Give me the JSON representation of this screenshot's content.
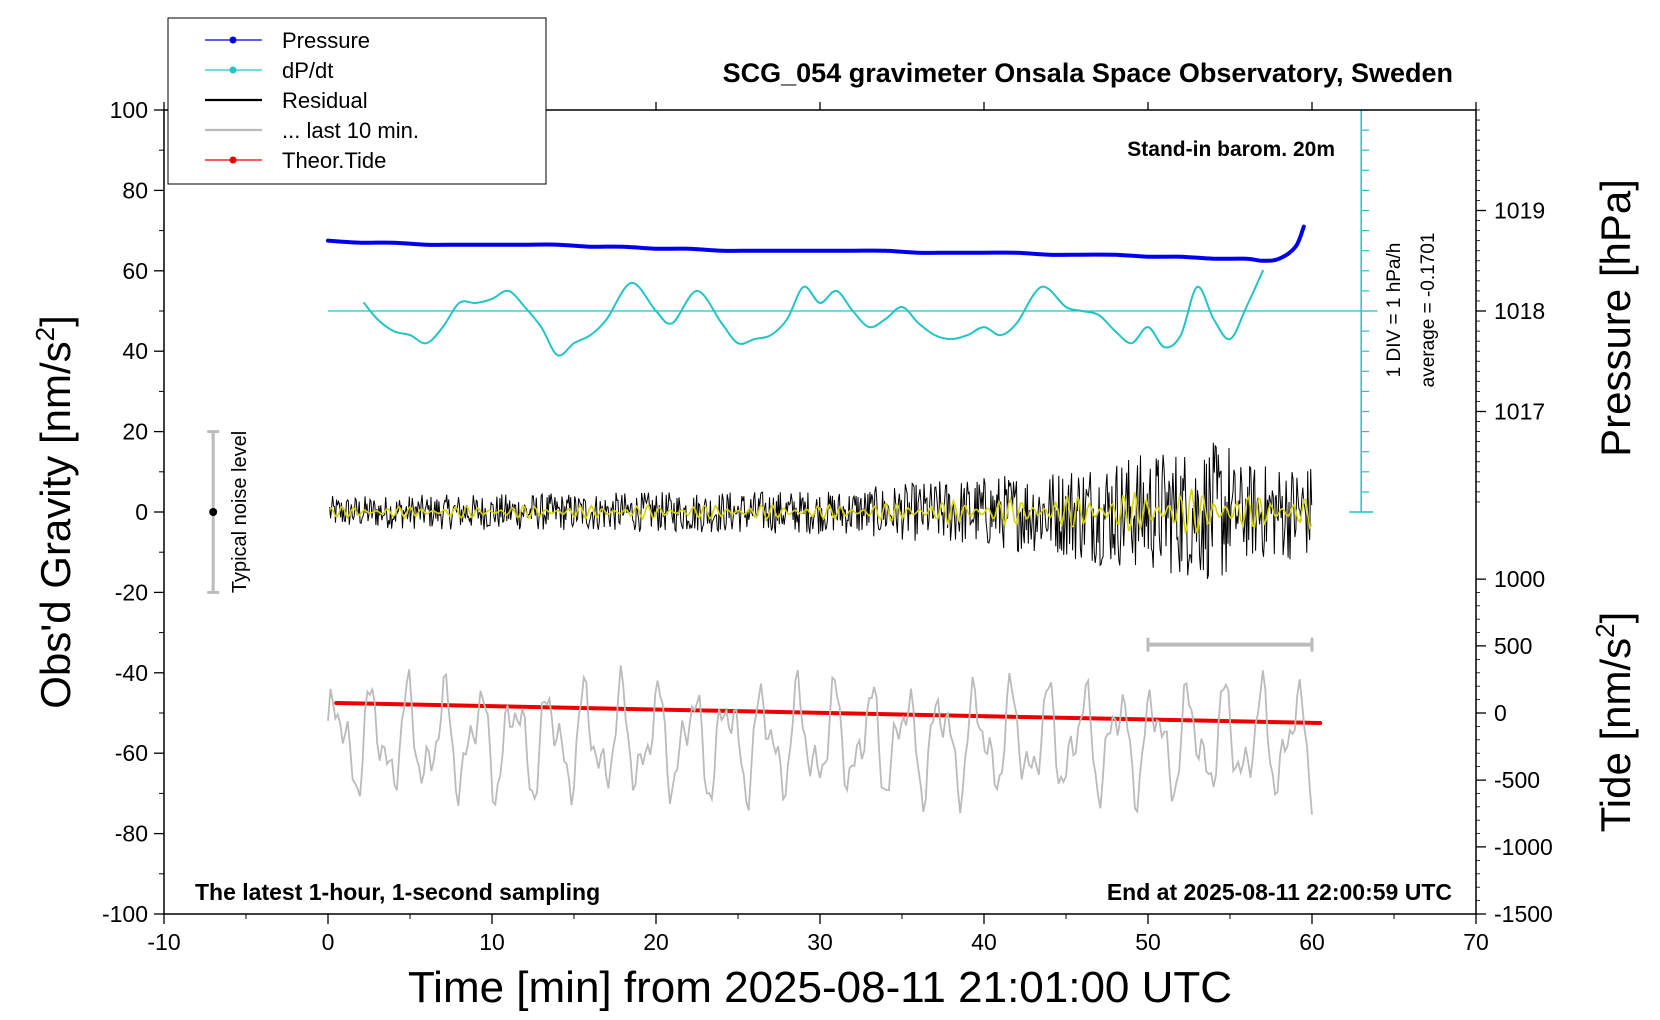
{
  "chart_data": {
    "type": "line",
    "title": "SCG_054 gravimeter Onsala Space Observatory, Sweden",
    "annotations": {
      "top_right": "Stand-in barom. 20m",
      "bottom_left": "The latest 1-hour, 1-second sampling",
      "bottom_right": "End at 2025-08-11 22:00:59 UTC",
      "noise_label": "Typical noise level",
      "dpdt_scale": "1 DIV = 1 hPa/h",
      "dpdt_average": "average = -0.1701"
    },
    "xaxis": {
      "label": "Time [min] from 2025-08-11 21:01:00 UTC",
      "range": [
        -10,
        70
      ],
      "ticks": [
        -10,
        0,
        10,
        20,
        30,
        40,
        50,
        60,
        70
      ]
    },
    "yaxis_left": {
      "label_main": "Obs'd Gravity [nm/s",
      "label_sup": "2",
      "label_end": "]",
      "range": [
        -100,
        100
      ],
      "ticks": [
        -100,
        -80,
        -60,
        -40,
        -20,
        0,
        20,
        40,
        60,
        80,
        100
      ]
    },
    "yaxis_pressure": {
      "label": "Pressure [hPa]",
      "ticks": [
        1017,
        1018,
        1019
      ],
      "ticks_gravity_equiv": [
        25,
        50,
        75
      ]
    },
    "yaxis_tide": {
      "label_main": "Tide [nm/s",
      "label_sup": "2",
      "label_end": "]",
      "ticks": [
        -1500,
        -1000,
        -500,
        0,
        500,
        1000
      ],
      "ticks_gravity_equiv": [
        -100,
        -83.3,
        -66.7,
        -50,
        -33.3,
        -16.7
      ]
    },
    "legend": {
      "placement": "top-left",
      "items": [
        {
          "label": "Pressure",
          "color": "#0000ee",
          "marker": "dot"
        },
        {
          "label": "dP/dt",
          "color": "#22c4c4",
          "marker": "dot"
        },
        {
          "label": "Residual",
          "color": "#000000",
          "marker": "line"
        },
        {
          "label": "... last 10 min.",
          "color": "#bbbbbb",
          "marker": "line"
        },
        {
          "label": "Theor.Tide",
          "color": "#ee0000",
          "marker": "dot"
        }
      ]
    },
    "noise_bar": {
      "x": -7,
      "y": 0,
      "half_range": 20
    },
    "last10_bar": {
      "x": [
        50,
        60
      ],
      "y": -33
    },
    "dpdt_scale_bar": {
      "x": 63,
      "y": [
        0,
        100
      ],
      "div": 5
    },
    "series": [
      {
        "name": "Pressure",
        "color": "#0000ee",
        "x": [
          0,
          2,
          4,
          6,
          8,
          10,
          12,
          14,
          16,
          18,
          20,
          22,
          24,
          26,
          28,
          30,
          32,
          34,
          36,
          38,
          40,
          42,
          44,
          46,
          48,
          50,
          52,
          54,
          56,
          57,
          58,
          59,
          59.5
        ],
        "y": [
          67.5,
          67,
          67,
          66.5,
          66.5,
          66.5,
          66.5,
          66.5,
          66,
          66,
          65.5,
          65.5,
          65,
          65,
          65,
          65,
          65,
          65,
          64.5,
          64.5,
          64.5,
          64.5,
          64,
          64,
          64,
          63.5,
          63.5,
          63,
          63,
          62.5,
          63,
          66,
          71
        ]
      },
      {
        "name": "dP/dt",
        "color": "#22c4c4",
        "x": [
          2.2,
          3,
          4,
          5,
          6,
          7,
          8,
          9,
          10,
          11,
          12,
          13,
          14,
          15,
          16,
          17,
          18.5,
          20,
          21,
          22.5,
          24,
          25,
          26,
          27,
          28,
          29,
          30,
          31,
          32,
          33,
          34,
          35,
          36,
          37,
          38,
          39,
          40,
          41,
          42,
          43.5,
          45,
          46,
          47,
          48,
          49,
          50,
          51,
          52,
          53,
          54,
          55,
          56,
          57
        ],
        "y": [
          52,
          48,
          45,
          44,
          42,
          46,
          52,
          52,
          53,
          55,
          51,
          46,
          39,
          42,
          44,
          48,
          57,
          50,
          47,
          55,
          47,
          42,
          43,
          44,
          48,
          56,
          52,
          55,
          50,
          46,
          48,
          51,
          47,
          44,
          43,
          44,
          46,
          44,
          47,
          56,
          51,
          50,
          49,
          45,
          42,
          46,
          41,
          44,
          56,
          48,
          43,
          51,
          60
        ]
      },
      {
        "name": "Theor.Tide",
        "color": "#ee0000",
        "x": [
          0.5,
          60.5
        ],
        "y": [
          -47.5,
          -52.5
        ]
      }
    ]
  }
}
